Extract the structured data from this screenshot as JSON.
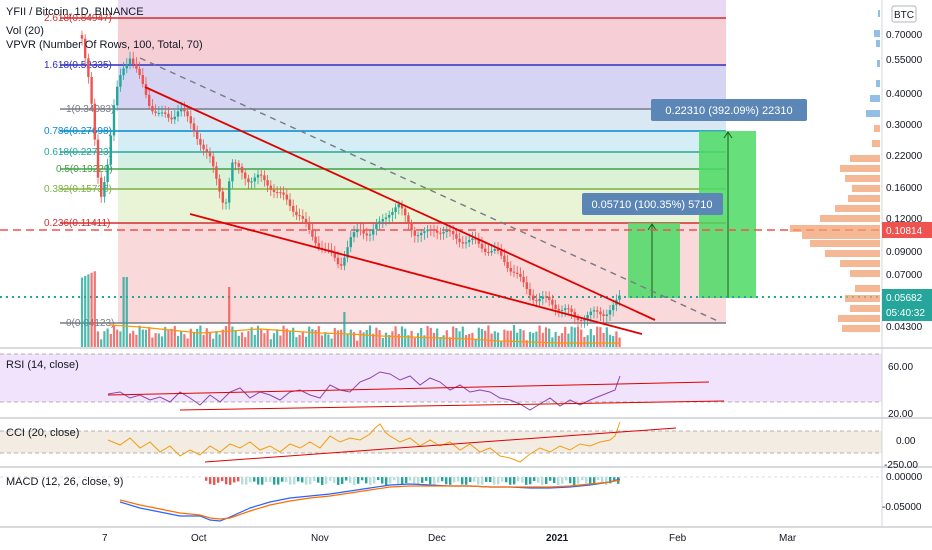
{
  "header": {
    "symbol_line": "YFII / Bitcoin, 1D, BINANCE",
    "vol_label": "Vol (20)",
    "vpvr_label": "VPVR (Number Of Rows, 100, Total, 70)",
    "currency_button": "BTC"
  },
  "fib_levels": [
    {
      "label": "2.618(0.84947)",
      "price": 0.84947,
      "color": "#d32f2f"
    },
    {
      "label": "1.618(0.52335)",
      "price": 0.52335,
      "color": "#2e2ebf"
    },
    {
      "label": "1(0.34083)",
      "price": 0.34083,
      "color": "#787b86"
    },
    {
      "label": "0.786(0.27698)",
      "price": 0.27698,
      "color": "#0288d1"
    },
    {
      "label": "0.618(0.22723)",
      "price": 0.22723,
      "color": "#26a69a"
    },
    {
      "label": "0.5(0.19229)",
      "price": 0.19229,
      "color": "#43a047"
    },
    {
      "label": "0.382(0.15735)",
      "price": 0.15735,
      "color": "#7cb342"
    },
    {
      "label": "0.236(0.11411)",
      "price": 0.11411,
      "color": "#d32f2f"
    },
    {
      "label": "0(0.04123)",
      "price": 0.04123,
      "color": "#787b86"
    }
  ],
  "measure_labels": {
    "large": "0.22310 (392.09%) 22310",
    "small": "0.05710 (100.35%) 5710"
  },
  "price_axis": {
    "ticks": [
      "0.70000",
      "0.55000",
      "0.40000",
      "0.30000",
      "0.22000",
      "0.16000",
      "0.12000",
      "0.09000",
      "0.07000",
      "0.04300"
    ],
    "level_price": "0.10814",
    "last_price": "0.05682",
    "countdown": "05:40:32"
  },
  "time_axis": {
    "ticks": [
      "7",
      "Oct",
      "Nov",
      "Dec",
      "2021",
      "Feb",
      "Mar"
    ]
  },
  "rsi": {
    "label": "RSI (14, close)",
    "ticks": [
      "60.00",
      "20.00"
    ]
  },
  "cci": {
    "label": "CCI (20, close)",
    "ticks": [
      "0.00",
      "-250.00"
    ]
  },
  "macd": {
    "label": "MACD (12, 26, close, 9)",
    "ticks": [
      "0.00000",
      "-0.05000"
    ]
  },
  "colors": {
    "up": "#26a69a",
    "down": "#ef5350",
    "trendline": "#e00000",
    "rsi_line": "#8e44ad",
    "cci_line": "#f39c12",
    "macd_line": "#2962ff",
    "signal_line": "#ff6d00",
    "target_zone": "#4cd964",
    "label_bg": "#5b86b5",
    "last_price_bg": "#26a69a",
    "level_bg": "#ef5350"
  }
}
